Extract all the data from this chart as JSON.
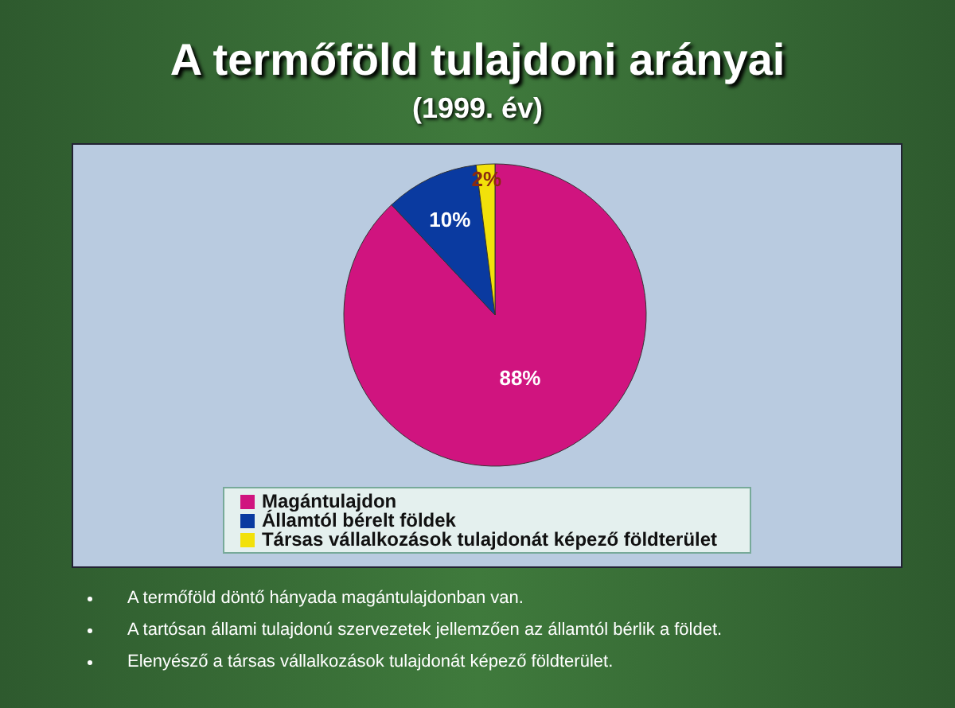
{
  "chart_data": {
    "type": "pie",
    "title": "A termőföld tulajdoni arányai",
    "subtitle": "(1999. év)",
    "categories": [
      "Magántulajdon",
      "Államtól bérelt földek",
      "Társas vállalkozások tulajdonát képező földterület"
    ],
    "values": [
      88,
      10,
      2
    ],
    "colors": [
      "#d0147f",
      "#0a3aa0",
      "#f2e10a"
    ],
    "value_labels": [
      "88%",
      "10%",
      "2%"
    ],
    "legend": "bottom",
    "annotations": [
      "A termőföld döntő hányada magántulajdonban van.",
      "A tartósan állami tulajdonú szervezetek jellemzően az államtól bérlik a földet.",
      "Elenyésző a társas vállalkozások tulajdonát képező földterület."
    ]
  }
}
